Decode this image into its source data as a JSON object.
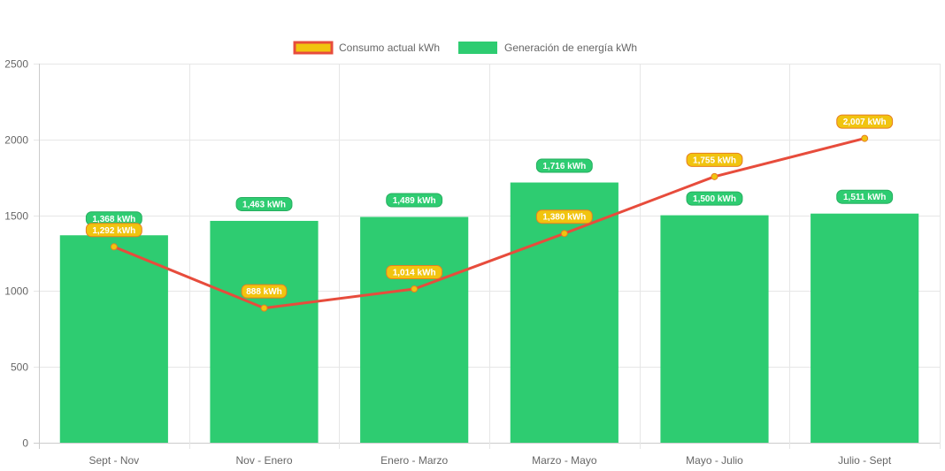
{
  "chart_data": {
    "type": "bar",
    "categories": [
      "Sept - Nov",
      "Nov - Enero",
      "Enero - Marzo",
      "Marzo - Mayo",
      "Mayo - Julio",
      "Julio - Sept"
    ],
    "series": [
      {
        "name": "Consumo actual kWh",
        "type": "line",
        "values": [
          1292,
          888,
          1014,
          1380,
          1755,
          2007
        ],
        "labels": [
          "1,292 kWh",
          "888 kWh",
          "1,014 kWh",
          "1,380 kWh",
          "1,755 kWh",
          "2,007 kWh"
        ]
      },
      {
        "name": "Generación de energía kWh",
        "type": "bar",
        "values": [
          1368,
          1463,
          1489,
          1716,
          1500,
          1511
        ],
        "labels": [
          "1,368 kWh",
          "1,463 kWh",
          "1,489 kWh",
          "1,716 kWh",
          "1,500 kWh",
          "1,511 kWh"
        ]
      }
    ],
    "yticks": [
      "0",
      "500",
      "1000",
      "1500",
      "2000",
      "2500"
    ],
    "ylim": [
      0,
      2500
    ],
    "grid": true,
    "legend_position": "top-center",
    "colors": {
      "line": "#e74c3c",
      "point_fill": "#f1c40f",
      "point_stroke": "#e67e22",
      "bar": "#2ecc71",
      "line_label_bg": "#f1c40f",
      "line_label_border": "#e67e22",
      "bar_label_bg": "#2ecc71",
      "bar_label_border": "#27ae60",
      "legend_line_fill": "#f1c40f",
      "legend_line_border": "#e74c3c"
    }
  }
}
